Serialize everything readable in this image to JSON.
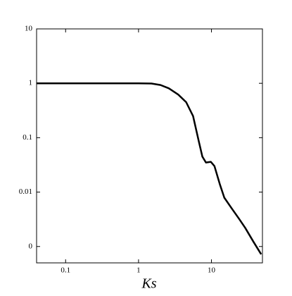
{
  "chart_data": {
    "type": "line",
    "xlabel": "Ks",
    "x": [
      0.04,
      0.1,
      0.5,
      1,
      1.5,
      2,
      2.6,
      3.5,
      4.5,
      5.6,
      6.7,
      7.5,
      8.4,
      9.8,
      11,
      13,
      15,
      19,
      24,
      29,
      38,
      48
    ],
    "series": [
      {
        "color": "#000000",
        "values": [
          1,
          1,
          1,
          1,
          0.99,
          0.93,
          0.81,
          0.62,
          0.45,
          0.25,
          0.086,
          0.045,
          0.035,
          0.036,
          0.03,
          0.014,
          0.0079,
          0.005,
          0.0032,
          0.0022,
          0.0012,
          0.00072
        ]
      }
    ],
    "xlog": true,
    "ylog": true,
    "xlim": [
      0.04,
      50
    ],
    "ylim": [
      0.0005,
      10
    ],
    "xticks": [
      0.1,
      1,
      10
    ],
    "yticks": [
      10,
      1,
      0.1,
      0.01,
      {
        "value": 0.001,
        "label": "0"
      }
    ]
  }
}
